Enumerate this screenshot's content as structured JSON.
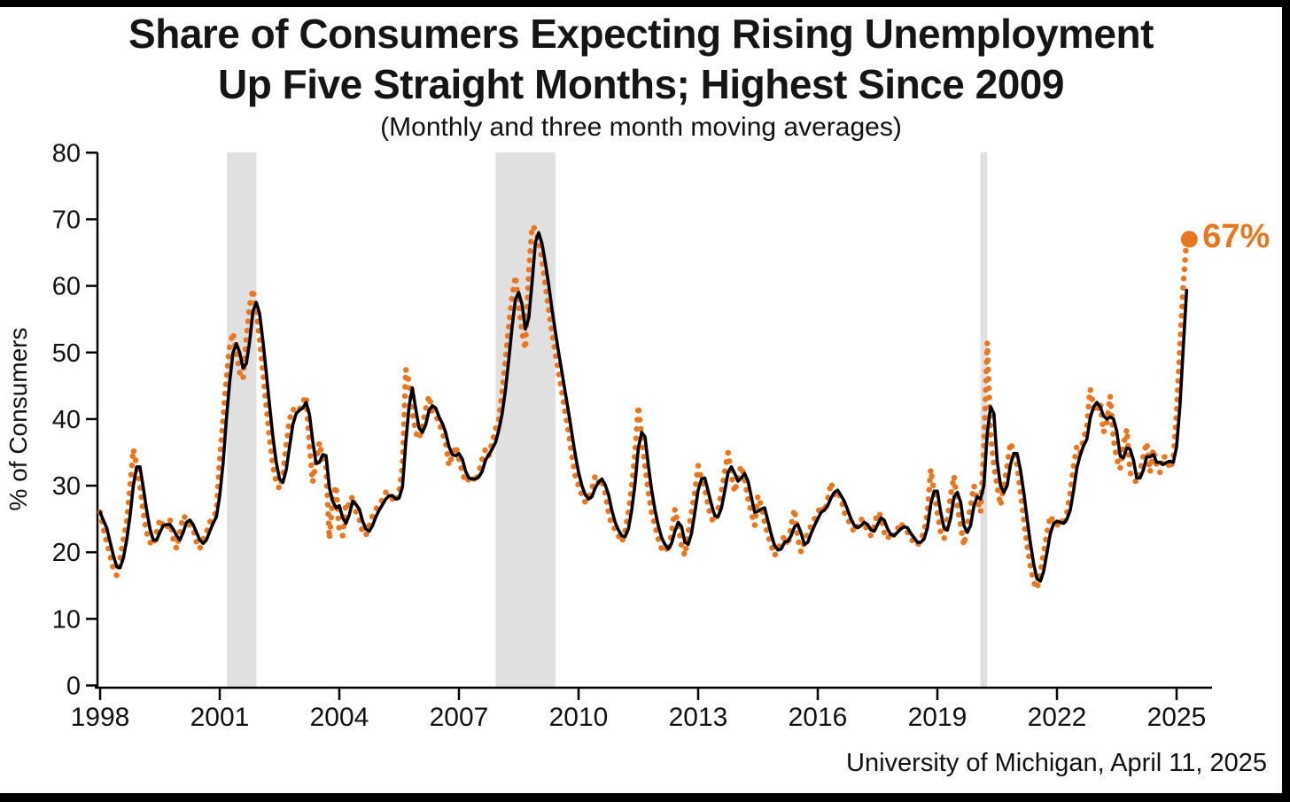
{
  "title": {
    "line1": "Share of Consumers Expecting Rising Unemployment",
    "line2": "Up Five Straight Months; Highest Since 2009",
    "subtitle": "(Monthly and three month moving averages)"
  },
  "source": {
    "text": "University of Michigan, April 11, 2025"
  },
  "annotation": {
    "last_value_label": "67%"
  },
  "colors": {
    "monthly_series": "#E87722",
    "moving_average": "#000000",
    "recession_band": "#E0E0E0",
    "axis": "#000000",
    "text": "#111111"
  },
  "chart_data": {
    "type": "line",
    "title": "Share of Consumers Expecting Rising Unemployment Up Five Straight Months; Highest Since 2009",
    "subtitle": "(Monthly and three month moving averages)",
    "xlabel": "",
    "ylabel": "% of Consumers",
    "ylim": [
      0,
      80
    ],
    "yticks": [
      0,
      10,
      20,
      30,
      40,
      50,
      60,
      70,
      80
    ],
    "xticks": [
      1998,
      2001,
      2004,
      2007,
      2010,
      2013,
      2016,
      2019,
      2022,
      2025
    ],
    "grid": false,
    "legend": "none",
    "x_start": "1998-01",
    "frequency": "monthly",
    "last_point": {
      "date": "2025-04",
      "value": 67,
      "label": "67%"
    },
    "recession_bands": [
      {
        "start": 2001.18,
        "end": 2001.92
      },
      {
        "start": 2007.92,
        "end": 2009.42
      },
      {
        "start": 2020.08,
        "end": 2020.25
      }
    ],
    "series": [
      {
        "name": "Monthly",
        "style": "dotted",
        "color": "#E87722",
        "values": [
          26,
          23.5,
          21.5,
          19.5,
          17.5,
          16.5,
          19,
          22,
          24.5,
          30,
          35.5,
          33,
          30,
          26,
          23,
          21.5,
          21,
          23,
          25,
          24,
          23.5,
          25,
          22,
          20.5,
          23,
          25.5,
          25,
          24,
          23.5,
          21.5,
          20.5,
          22,
          23,
          24.5,
          25.5,
          26,
          34,
          40,
          46,
          51,
          53,
          50,
          47,
          46,
          52,
          57,
          59.5,
          56,
          52,
          47,
          42,
          37,
          33,
          30.5,
          29.5,
          31.5,
          36,
          40,
          41.5,
          41,
          41.5,
          42.5,
          43.5,
          36,
          30.5,
          33.5,
          36.5,
          34,
          33,
          22,
          28,
          30,
          23,
          22.5,
          27.5,
          27,
          28.5,
          26,
          25,
          23,
          22.5,
          24,
          25.5,
          26.5,
          27,
          28,
          29,
          28.5,
          28,
          27.5,
          29,
          33,
          47.5,
          45.5,
          41,
          38,
          37,
          39,
          41.5,
          43.5,
          41,
          40.5,
          39.5,
          38,
          36.5,
          33,
          34.5,
          36,
          34,
          32,
          30.5,
          31,
          31.5,
          30.5,
          32,
          34,
          35.5,
          34.5,
          36.5,
          38.5,
          40,
          44,
          49,
          54,
          58.5,
          61.5,
          57,
          53,
          50.5,
          62,
          69,
          68.5,
          66.5,
          64,
          60,
          56.5,
          53,
          50,
          47,
          44,
          41,
          38,
          34.5,
          31.5,
          30,
          28.5,
          27.5,
          28,
          29.5,
          31.5,
          30.5,
          31,
          29,
          26,
          24,
          23.5,
          22.5,
          21.5,
          23,
          26,
          30,
          35,
          42,
          37,
          33,
          29,
          26,
          24,
          22,
          20.5,
          21,
          20,
          23,
          26.5,
          24,
          21,
          19.5,
          23,
          26,
          29,
          33,
          31,
          29.5,
          27,
          25,
          24.5,
          26.5,
          29,
          32,
          35,
          31.5,
          29,
          31.5,
          33,
          31,
          28,
          26,
          24,
          28.5,
          27,
          24.5,
          22.5,
          21,
          19.5,
          20.5,
          21.5,
          22.5,
          21,
          24,
          26.5,
          22,
          20,
          21.5,
          23,
          24,
          25,
          26,
          27,
          26,
          28,
          30.5,
          28.5,
          29,
          28,
          26,
          25,
          24,
          23,
          24,
          25,
          24.5,
          23,
          22.5,
          24,
          26,
          25.5,
          23,
          22,
          23,
          22.5,
          23.5,
          24.5,
          23.5,
          23,
          22,
          21.5,
          21,
          22,
          23,
          26,
          32.5,
          29,
          26,
          23,
          22,
          25,
          28.5,
          31.5,
          27,
          24,
          21,
          24,
          27,
          30,
          28,
          26,
          36,
          51.5,
          38,
          33,
          30,
          27,
          30,
          33,
          36.5,
          35,
          33,
          29,
          25,
          21,
          18,
          15.5,
          14.5,
          17,
          20,
          23,
          25.5,
          24.5,
          24,
          25,
          24,
          26,
          29,
          33,
          36,
          35,
          37,
          39,
          44.5,
          42,
          41,
          42.5,
          38,
          39.5,
          43.5,
          37,
          34,
          32.5,
          36,
          38.5,
          32,
          31,
          30.5,
          32,
          34.5,
          36.5,
          32,
          35.5,
          33,
          32,
          34.5,
          34,
          32.5,
          34,
          41,
          51,
          60,
          67
        ]
      },
      {
        "name": "Three month moving average",
        "style": "solid",
        "color": "#000000",
        "derived": "3_month_moving_average_of_Monthly"
      }
    ]
  }
}
